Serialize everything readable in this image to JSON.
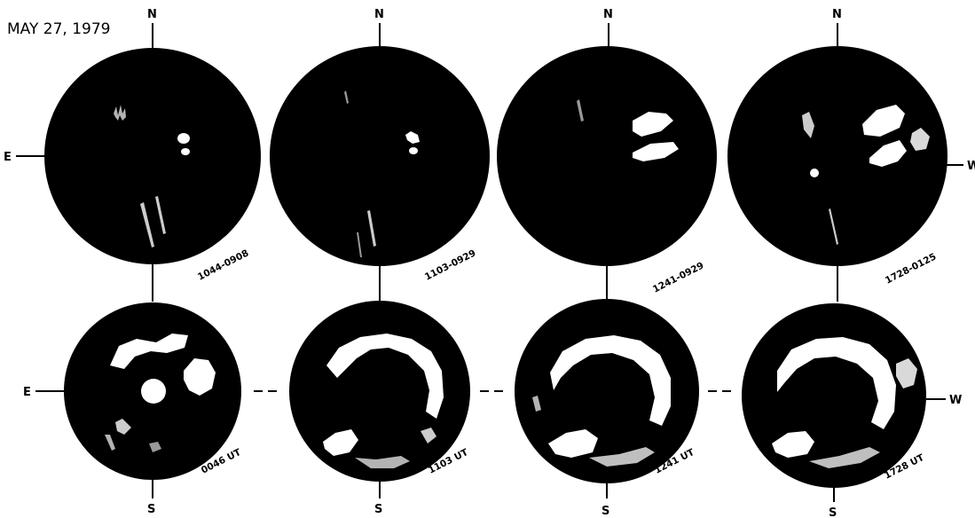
{
  "date": "MAY 27, 1979",
  "directions": {
    "north": "N",
    "south": "S",
    "east": "E",
    "west": "W"
  },
  "marker_o": "O",
  "top_row": [
    {
      "label": "1044-0908"
    },
    {
      "label": "1103-0929"
    },
    {
      "label": "1241-0929"
    },
    {
      "label": "1728-0125"
    }
  ],
  "bottom_row": [
    {
      "label": "0046 UT"
    },
    {
      "label": "1103 UT"
    },
    {
      "label": "1241 UT"
    },
    {
      "label": "1728 UT"
    }
  ],
  "colors": {
    "disk": "#000000",
    "emission": "#ffffff",
    "background": "#ffffff"
  }
}
